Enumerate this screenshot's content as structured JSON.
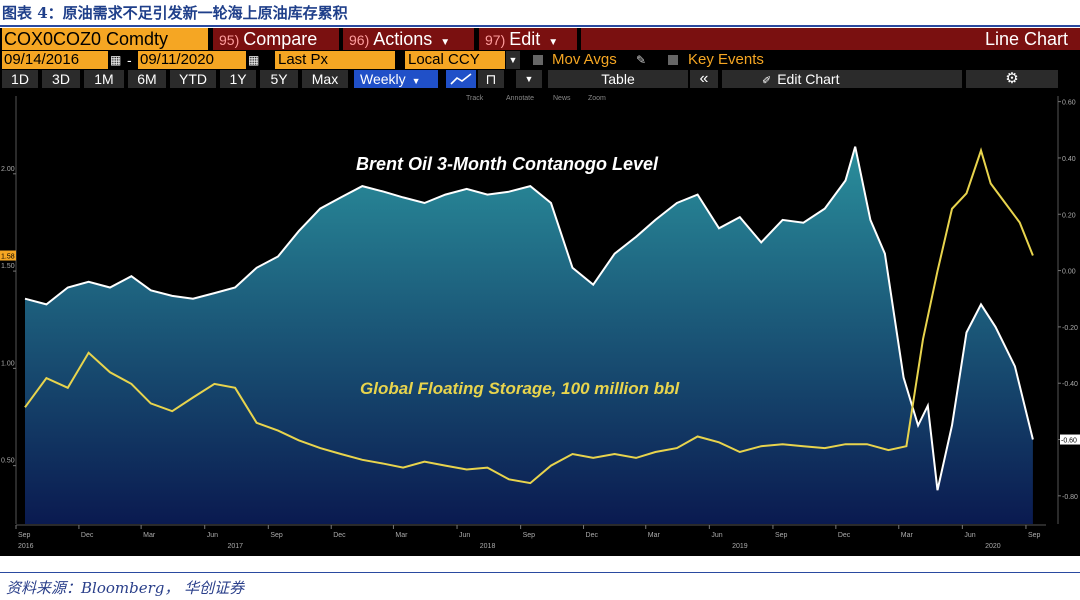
{
  "caption": "图表 4：原油需求不足引发新一轮海上原油库存累积",
  "source": "资料来源：Bloomberg， 华创证券",
  "toolbar": {
    "ticker": "COX0COZ0 Comdty",
    "compare_fn": "95)",
    "compare": "Compare",
    "actions_fn": "96)",
    "actions": "Actions",
    "edit_fn": "97)",
    "edit": "Edit",
    "chart_kind": "Line Chart",
    "start_date": "09/14/2016",
    "end_date": "09/11/2020",
    "price_field": "Last Px",
    "currency": "Local CCY",
    "mov_avgs": "Mov Avgs",
    "key_events": "Key Events",
    "periods": [
      "1D",
      "3D",
      "1M",
      "6M",
      "YTD",
      "1Y",
      "5Y",
      "Max"
    ],
    "frequency": "Weekly",
    "table": "Table",
    "edit_chart": "Edit Chart",
    "tools": [
      "Track",
      "Annotate",
      "News",
      "Zoom"
    ]
  },
  "colors": {
    "accent": "#f5a623",
    "series_brent": "#ffffff",
    "series_storage": "#e8d44d",
    "fill_top": "#2a8f9c",
    "fill_bottom": "#0a1a50"
  },
  "chart_data": {
    "type": "line",
    "series": [
      {
        "name": "Brent Oil 3-Month Contanogo Level",
        "axis": "right",
        "points": [
          [
            "2016-09-14",
            -0.1
          ],
          [
            "2016-10-15",
            -0.12
          ],
          [
            "2016-11-15",
            -0.06
          ],
          [
            "2016-12-15",
            -0.04
          ],
          [
            "2017-01-15",
            -0.06
          ],
          [
            "2017-02-15",
            -0.02
          ],
          [
            "2017-03-15",
            -0.07
          ],
          [
            "2017-04-15",
            -0.09
          ],
          [
            "2017-05-15",
            -0.1
          ],
          [
            "2017-06-15",
            -0.08
          ],
          [
            "2017-07-15",
            -0.06
          ],
          [
            "2017-08-15",
            0.01
          ],
          [
            "2017-09-15",
            0.05
          ],
          [
            "2017-10-15",
            0.14
          ],
          [
            "2017-11-15",
            0.22
          ],
          [
            "2017-12-15",
            0.26
          ],
          [
            "2018-01-15",
            0.3
          ],
          [
            "2018-02-15",
            0.28
          ],
          [
            "2018-03-15",
            0.26
          ],
          [
            "2018-04-15",
            0.24
          ],
          [
            "2018-05-15",
            0.27
          ],
          [
            "2018-06-15",
            0.29
          ],
          [
            "2018-07-15",
            0.27
          ],
          [
            "2018-08-15",
            0.28
          ],
          [
            "2018-09-15",
            0.3
          ],
          [
            "2018-10-15",
            0.24
          ],
          [
            "2018-11-15",
            0.01
          ],
          [
            "2018-12-15",
            -0.05
          ],
          [
            "2019-01-15",
            0.06
          ],
          [
            "2019-02-15",
            0.12
          ],
          [
            "2019-03-15",
            0.18
          ],
          [
            "2019-04-15",
            0.24
          ],
          [
            "2019-05-15",
            0.27
          ],
          [
            "2019-06-15",
            0.15
          ],
          [
            "2019-07-15",
            0.19
          ],
          [
            "2019-08-15",
            0.1
          ],
          [
            "2019-09-15",
            0.18
          ],
          [
            "2019-10-15",
            0.17
          ],
          [
            "2019-11-15",
            0.22
          ],
          [
            "2019-12-15",
            0.32
          ],
          [
            "2019-12-29",
            0.44
          ],
          [
            "2020-01-20",
            0.18
          ],
          [
            "2020-02-10",
            0.06
          ],
          [
            "2020-03-08",
            -0.38
          ],
          [
            "2020-03-29",
            -0.55
          ],
          [
            "2020-04-12",
            -0.48
          ],
          [
            "2020-04-26",
            -0.78
          ],
          [
            "2020-05-17",
            -0.55
          ],
          [
            "2020-06-07",
            -0.22
          ],
          [
            "2020-06-28",
            -0.12
          ],
          [
            "2020-07-19",
            -0.2
          ],
          [
            "2020-08-16",
            -0.34
          ],
          [
            "2020-09-11",
            -0.6
          ]
        ]
      },
      {
        "name": "Global Floating Storage, 100 million bbl",
        "axis": "left",
        "points": [
          [
            "2016-09-14",
            0.8
          ],
          [
            "2016-10-15",
            0.95
          ],
          [
            "2016-11-15",
            0.9
          ],
          [
            "2016-12-15",
            1.08
          ],
          [
            "2017-01-15",
            0.98
          ],
          [
            "2017-02-15",
            0.92
          ],
          [
            "2017-03-15",
            0.82
          ],
          [
            "2017-04-15",
            0.78
          ],
          [
            "2017-05-15",
            0.85
          ],
          [
            "2017-06-15",
            0.92
          ],
          [
            "2017-07-15",
            0.9
          ],
          [
            "2017-08-15",
            0.72
          ],
          [
            "2017-09-15",
            0.68
          ],
          [
            "2017-10-15",
            0.63
          ],
          [
            "2017-11-15",
            0.59
          ],
          [
            "2017-12-15",
            0.56
          ],
          [
            "2018-01-15",
            0.53
          ],
          [
            "2018-02-15",
            0.51
          ],
          [
            "2018-03-15",
            0.49
          ],
          [
            "2018-04-15",
            0.52
          ],
          [
            "2018-05-15",
            0.5
          ],
          [
            "2018-06-15",
            0.48
          ],
          [
            "2018-07-15",
            0.49
          ],
          [
            "2018-08-15",
            0.43
          ],
          [
            "2018-09-15",
            0.41
          ],
          [
            "2018-10-15",
            0.5
          ],
          [
            "2018-11-15",
            0.56
          ],
          [
            "2018-12-15",
            0.54
          ],
          [
            "2019-01-15",
            0.56
          ],
          [
            "2019-02-15",
            0.54
          ],
          [
            "2019-03-15",
            0.57
          ],
          [
            "2019-04-15",
            0.59
          ],
          [
            "2019-05-15",
            0.65
          ],
          [
            "2019-06-15",
            0.62
          ],
          [
            "2019-07-15",
            0.57
          ],
          [
            "2019-08-15",
            0.6
          ],
          [
            "2019-09-15",
            0.61
          ],
          [
            "2019-10-15",
            0.6
          ],
          [
            "2019-11-15",
            0.59
          ],
          [
            "2019-12-15",
            0.61
          ],
          [
            "2020-01-15",
            0.61
          ],
          [
            "2020-02-15",
            0.58
          ],
          [
            "2020-03-12",
            0.6
          ],
          [
            "2020-04-05",
            1.15
          ],
          [
            "2020-04-26",
            1.5
          ],
          [
            "2020-05-17",
            1.82
          ],
          [
            "2020-06-07",
            1.9
          ],
          [
            "2020-06-28",
            2.12
          ],
          [
            "2020-07-12",
            1.95
          ],
          [
            "2020-08-02",
            1.85
          ],
          [
            "2020-08-23",
            1.75
          ],
          [
            "2020-09-11",
            1.58
          ]
        ]
      }
    ],
    "left_axis": {
      "min": 0.2,
      "max": 2.4,
      "ticks": [
        0.5,
        1.0,
        1.5,
        2.0
      ],
      "tick_labels": [
        "0.50",
        "1.00",
        "1.50",
        "2.00"
      ],
      "last_value": "1.58"
    },
    "right_axis": {
      "min": -0.9,
      "max": 0.62,
      "ticks": [
        0.6,
        0.4,
        0.2,
        0.0,
        -0.2,
        -0.4,
        -0.6,
        -0.8
      ],
      "tick_labels": [
        "0.60",
        "0.40",
        "0.20",
        "0.00",
        "-0.20",
        "-0.40",
        "-0.60",
        "-0.80"
      ],
      "last_value": "-0.60"
    },
    "x_axis": {
      "start": "2016-09-01",
      "end": "2020-09-30",
      "months": [
        [
          "2016-09-01",
          "Sep"
        ],
        [
          "2016-12-01",
          "Dec"
        ],
        [
          "2017-03-01",
          "Mar"
        ],
        [
          "2017-06-01",
          "Jun"
        ],
        [
          "2017-09-01",
          "Sep"
        ],
        [
          "2017-12-01",
          "Dec"
        ],
        [
          "2018-03-01",
          "Mar"
        ],
        [
          "2018-06-01",
          "Jun"
        ],
        [
          "2018-09-01",
          "Sep"
        ],
        [
          "2018-12-01",
          "Dec"
        ],
        [
          "2019-03-01",
          "Mar"
        ],
        [
          "2019-06-01",
          "Jun"
        ],
        [
          "2019-09-01",
          "Sep"
        ],
        [
          "2019-12-01",
          "Dec"
        ],
        [
          "2020-03-01",
          "Mar"
        ],
        [
          "2020-06-01",
          "Jun"
        ],
        [
          "2020-09-01",
          "Sep"
        ]
      ],
      "years": [
        [
          "2016-09-01",
          "2016"
        ],
        [
          "2017-07-01",
          "2017"
        ],
        [
          "2018-07-01",
          "2018"
        ],
        [
          "2019-07-01",
          "2019"
        ],
        [
          "2020-07-01",
          "2020"
        ]
      ]
    },
    "annotations": [
      "Brent Oil 3-Month Contanogo Level",
      "Global Floating Storage, 100 million bbl"
    ],
    "grid": false,
    "legend": "none"
  }
}
